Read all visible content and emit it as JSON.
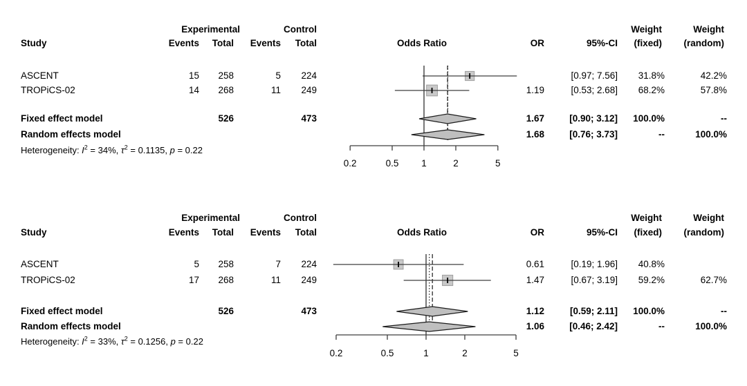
{
  "colors": {
    "text": "#000000",
    "line": "#3d3d3d",
    "square_fill": "#c9c9c9",
    "square_edge": "#9e9e9e",
    "diamond_fill": "#bfbfbf",
    "diamond_edge": "#1a1a1a",
    "pooled_line": "#1a1a1a"
  },
  "chart_data": [
    {
      "type": "forest",
      "panel": "top",
      "effect_measure": "Odds Ratio",
      "columns": {
        "study": "Study",
        "exp_group": "Experimental",
        "ctrl_group": "Control",
        "events": "Events",
        "total": "Total",
        "events2": "Events",
        "total2": "Total",
        "plot": "Odds Ratio",
        "or": "OR",
        "ci": "95%-CI",
        "weight1": "Weight",
        "weight_fixed": "(fixed)",
        "weight2": "Weight",
        "weight_random": "(random)"
      },
      "studies": [
        {
          "name": "ASCENT",
          "exp_events": "15",
          "exp_total": "258",
          "ctrl_events": "5",
          "ctrl_total": "224",
          "or_text": "",
          "or_value": 2.71,
          "ci_low": 0.97,
          "ci_high": 7.56,
          "ci_text": "[0.97; 7.56]",
          "weight_fixed": "31.8%",
          "weight_random": "42.2%"
        },
        {
          "name": "TROPiCS-02",
          "exp_events": "14",
          "exp_total": "268",
          "ctrl_events": "11",
          "ctrl_total": "249",
          "or_text": "1.19",
          "or_value": 1.19,
          "ci_low": 0.53,
          "ci_high": 2.68,
          "ci_text": "[0.53; 2.68]",
          "weight_fixed": "68.2%",
          "weight_random": "57.8%"
        }
      ],
      "fixed": {
        "label": "Fixed effect model",
        "exp_total": "526",
        "ctrl_total": "473",
        "or_text": "1.67",
        "or_value": 1.67,
        "ci_low": 0.9,
        "ci_high": 3.12,
        "ci_text": "[0.90; 3.12]",
        "weight_fixed": "100.0%",
        "weight_random": "--"
      },
      "random": {
        "label": "Random effects model",
        "or_text": "1.68",
        "or_value": 1.68,
        "ci_low": 0.76,
        "ci_high": 3.73,
        "ci_text": "[0.76; 3.73]",
        "weight_fixed": "--",
        "weight_random": "100.0%"
      },
      "heterogeneity": {
        "segments": [
          {
            "t": "Heterogeneity: "
          },
          {
            "t": "I",
            "italic": true
          },
          {
            "t": "2",
            "sup": true
          },
          {
            "t": " = 34%, "
          },
          {
            "t": "τ",
            "italic": true
          },
          {
            "t": "2",
            "sup": true
          },
          {
            "t": " = 0.1135, "
          },
          {
            "t": "p",
            "italic": true
          },
          {
            "t": " = 0.22"
          }
        ]
      },
      "axis": {
        "scale": "log",
        "null_value": 1,
        "ticks": [
          0.2,
          0.5,
          1,
          2,
          5
        ],
        "tick_labels": [
          "0.2",
          "0.5",
          "1",
          "2",
          "5"
        ]
      }
    },
    {
      "type": "forest",
      "panel": "bottom",
      "effect_measure": "Odds Ratio",
      "columns": {
        "study": "Study",
        "exp_group": "Experimental",
        "ctrl_group": "Control",
        "events": "Events",
        "total": "Total",
        "events2": "Events",
        "total2": "Total",
        "plot": "Odds Ratio",
        "or": "OR",
        "ci": "95%-CI",
        "weight1": "Weight",
        "weight_fixed": "(fixed)",
        "weight2": "Weight",
        "weight_random": "(random)"
      },
      "studies": [
        {
          "name": "ASCENT",
          "exp_events": "5",
          "exp_total": "258",
          "ctrl_events": "7",
          "ctrl_total": "224",
          "or_text": "0.61",
          "or_value": 0.61,
          "ci_low": 0.19,
          "ci_high": 1.96,
          "ci_text": "[0.19; 1.96]",
          "weight_fixed": "40.8%",
          "weight_random": ""
        },
        {
          "name": "TROPiCS-02",
          "exp_events": "17",
          "exp_total": "268",
          "ctrl_events": "11",
          "ctrl_total": "249",
          "or_text": "1.47",
          "or_value": 1.47,
          "ci_low": 0.67,
          "ci_high": 3.19,
          "ci_text": "[0.67; 3.19]",
          "weight_fixed": "59.2%",
          "weight_random": "62.7%"
        }
      ],
      "fixed": {
        "label": "Fixed effect model",
        "exp_total": "526",
        "ctrl_total": "473",
        "or_text": "1.12",
        "or_value": 1.12,
        "ci_low": 0.59,
        "ci_high": 2.11,
        "ci_text": "[0.59; 2.11]",
        "weight_fixed": "100.0%",
        "weight_random": "--"
      },
      "random": {
        "label": "Random effects model",
        "or_text": "1.06",
        "or_value": 1.06,
        "ci_low": 0.46,
        "ci_high": 2.42,
        "ci_text": "[0.46; 2.42]",
        "weight_fixed": "--",
        "weight_random": "100.0%"
      },
      "heterogeneity": {
        "segments": [
          {
            "t": "Heterogeneity: "
          },
          {
            "t": "I",
            "italic": true
          },
          {
            "t": "2",
            "sup": true
          },
          {
            "t": " = 33%, "
          },
          {
            "t": "τ",
            "italic": true
          },
          {
            "t": "2",
            "sup": true
          },
          {
            "t": " = 0.1256, "
          },
          {
            "t": "p",
            "italic": true
          },
          {
            "t": " = 0.22"
          }
        ]
      },
      "axis": {
        "scale": "log",
        "null_value": 1,
        "ticks": [
          0.2,
          0.5,
          1,
          2,
          5
        ],
        "tick_labels": [
          "0.2",
          "0.5",
          "1",
          "2",
          "5"
        ]
      }
    }
  ]
}
